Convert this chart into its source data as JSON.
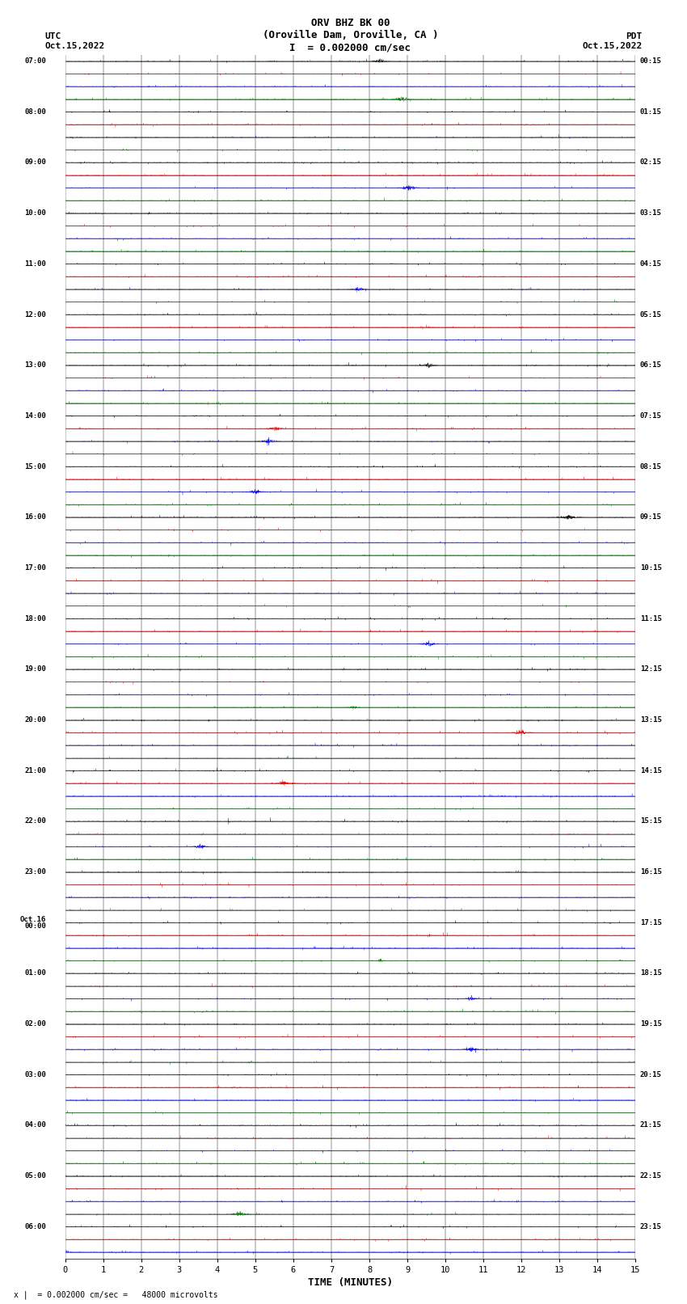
{
  "title_line1": "ORV BHZ BK 00",
  "title_line2": "(Oroville Dam, Oroville, CA )",
  "title_line3": "I  = 0.002000 cm/sec",
  "left_top_label": "UTC\nOct.15,2022",
  "right_top_label": "PDT\nOct.15,2022",
  "footer_label": "x |  = 0.002000 cm/sec =   48000 microvolts",
  "xlabel": "TIME (MINUTES)",
  "left_times": [
    "07:00",
    "",
    "",
    "",
    "08:00",
    "",
    "",
    "",
    "09:00",
    "",
    "",
    "",
    "10:00",
    "",
    "",
    "",
    "11:00",
    "",
    "",
    "",
    "12:00",
    "",
    "",
    "",
    "13:00",
    "",
    "",
    "",
    "14:00",
    "",
    "",
    "",
    "15:00",
    "",
    "",
    "",
    "16:00",
    "",
    "",
    "",
    "17:00",
    "",
    "",
    "",
    "18:00",
    "",
    "",
    "",
    "19:00",
    "",
    "",
    "",
    "20:00",
    "",
    "",
    "",
    "21:00",
    "",
    "",
    "",
    "22:00",
    "",
    "",
    "",
    "23:00",
    "",
    "",
    "",
    "Oct.16\n00:00",
    "",
    "",
    "",
    "01:00",
    "",
    "",
    "",
    "02:00",
    "",
    "",
    "",
    "03:00",
    "",
    "",
    "",
    "04:00",
    "",
    "",
    "",
    "05:00",
    "",
    "",
    "",
    "06:00",
    "",
    ""
  ],
  "right_times": [
    "00:15",
    "",
    "",
    "",
    "01:15",
    "",
    "",
    "",
    "02:15",
    "",
    "",
    "",
    "03:15",
    "",
    "",
    "",
    "04:15",
    "",
    "",
    "",
    "05:15",
    "",
    "",
    "",
    "06:15",
    "",
    "",
    "",
    "07:15",
    "",
    "",
    "",
    "08:15",
    "",
    "",
    "",
    "09:15",
    "",
    "",
    "",
    "10:15",
    "",
    "",
    "",
    "11:15",
    "",
    "",
    "",
    "12:15",
    "",
    "",
    "",
    "13:15",
    "",
    "",
    "",
    "14:15",
    "",
    "",
    "",
    "15:15",
    "",
    "",
    "",
    "16:15",
    "",
    "",
    "",
    "17:15",
    "",
    "",
    "",
    "18:15",
    "",
    "",
    "",
    "19:15",
    "",
    "",
    "",
    "20:15",
    "",
    "",
    "",
    "21:15",
    "",
    "",
    "",
    "22:15",
    "",
    "",
    "",
    "23:15",
    "",
    ""
  ],
  "n_rows": 95,
  "n_minutes": 15,
  "bg_color": "#ffffff",
  "trace_colors": [
    "black",
    "red",
    "blue",
    "green"
  ],
  "grid_color": "#000000",
  "noise_amp": 0.06,
  "spike_amp": 0.25,
  "spike_prob": 0.015
}
